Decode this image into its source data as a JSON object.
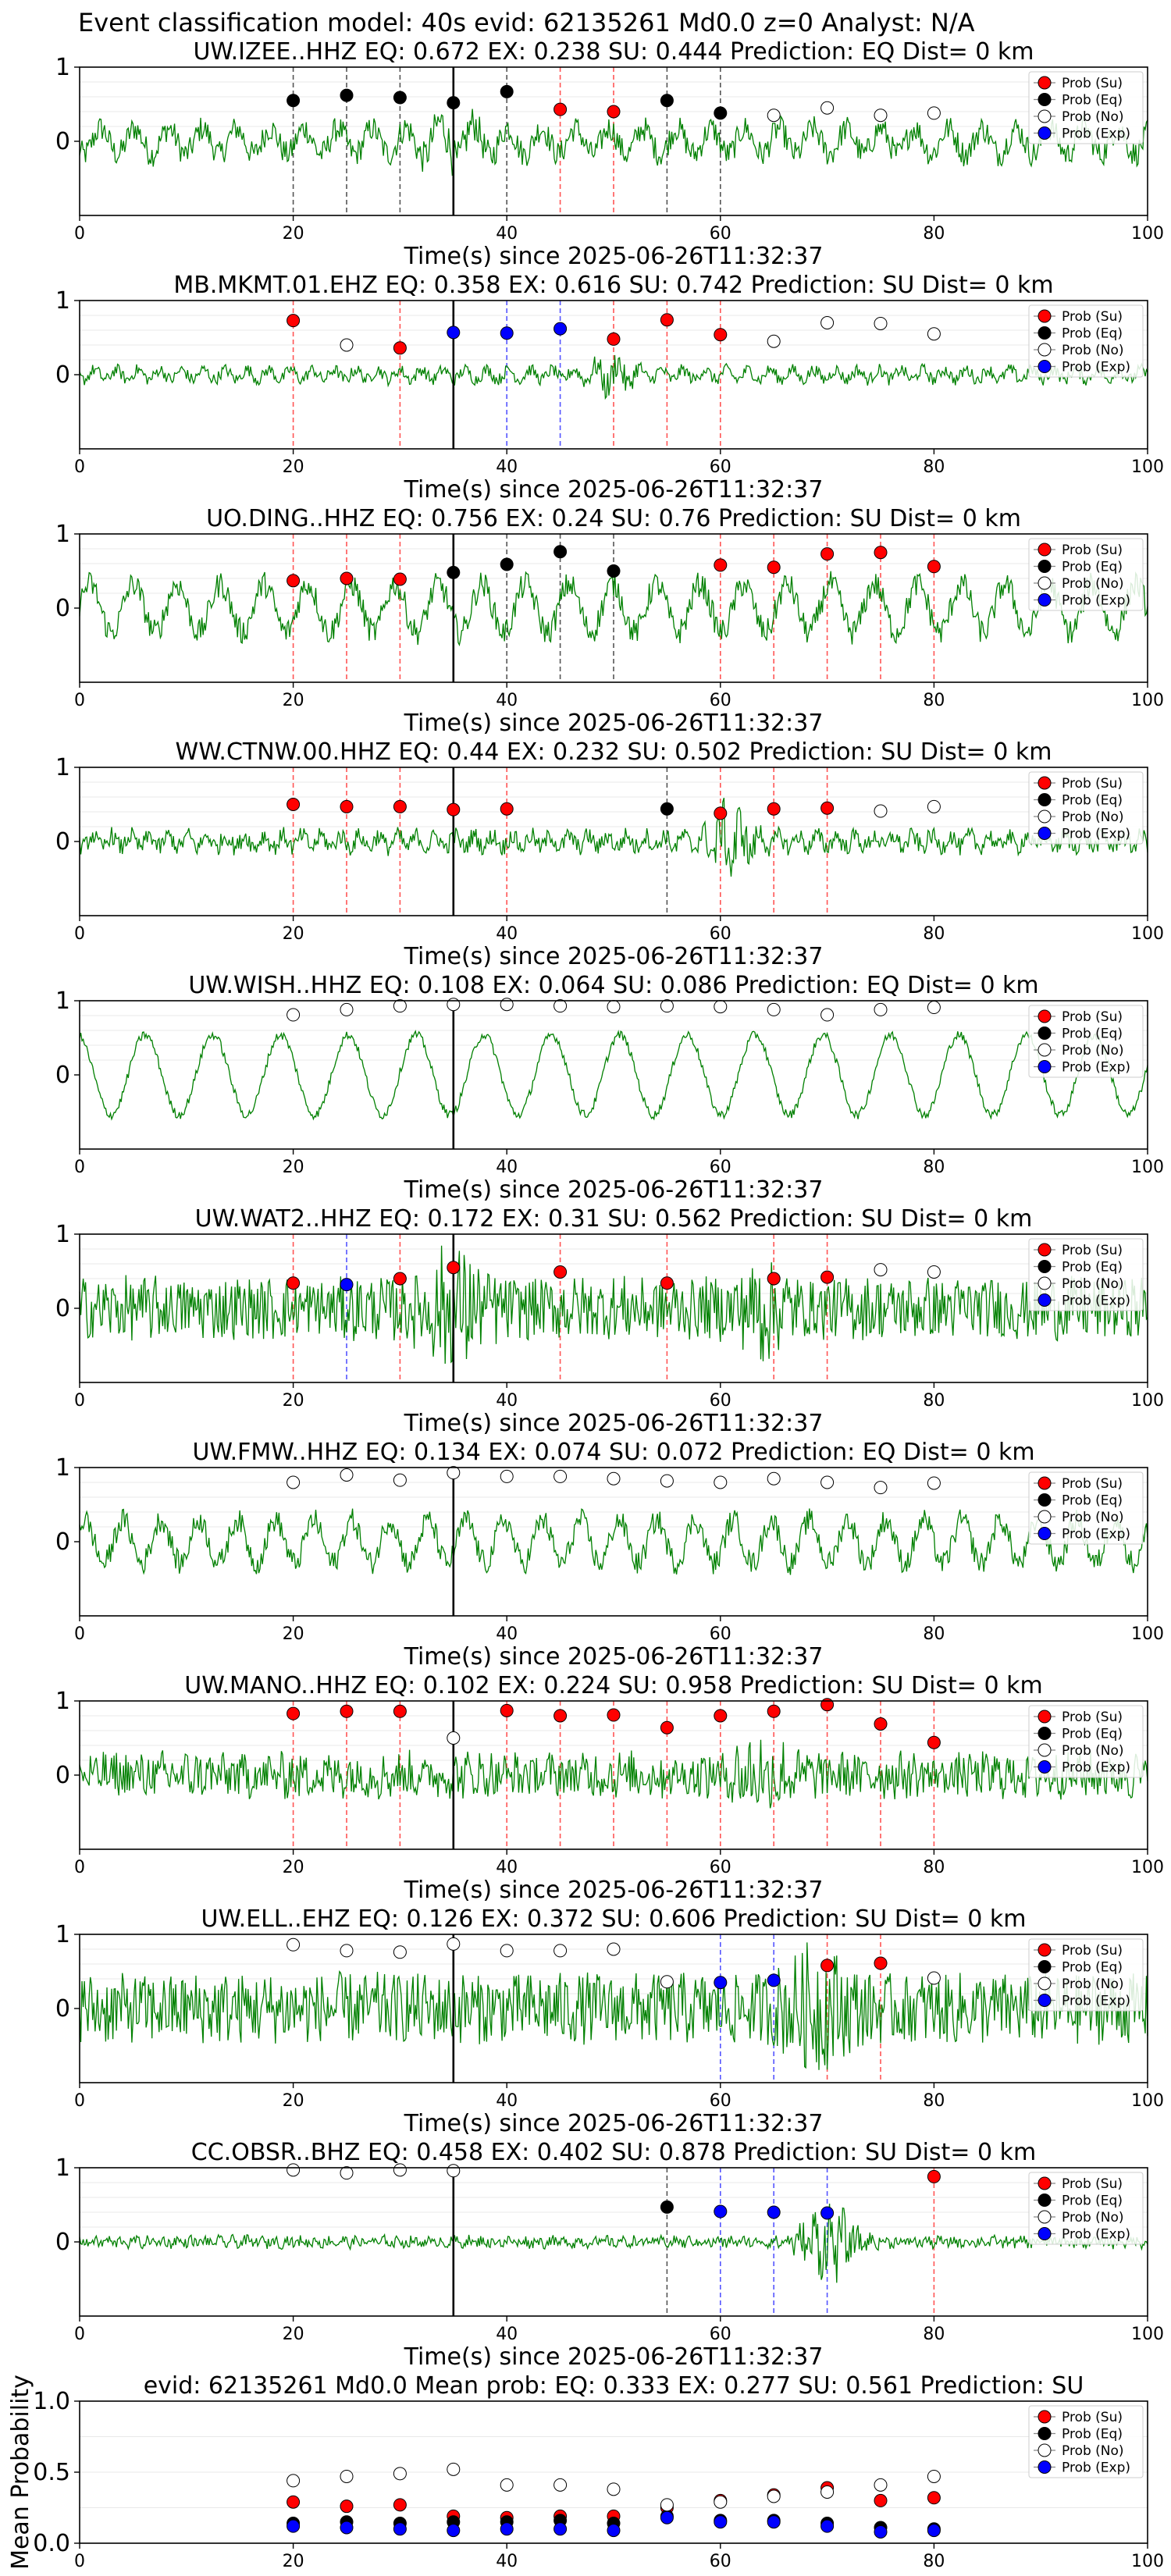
{
  "figure_title": "Event classification model: 40s evid: 62135261 Md0.0 z=0 Analyst: N/A",
  "colors": {
    "waveform": "#008000",
    "su": "#ff0000",
    "eq": "#000000",
    "no": "#ffffff",
    "exp": "#0000ff",
    "su_line": "#ff5555",
    "eq_line": "#555555",
    "exp_line": "#5555ff",
    "pick_line": "#000000"
  },
  "legend": [
    "Prob (Su)",
    "Prob (Eq)",
    "Prob (No)",
    "Prob (Exp)"
  ],
  "chart_data": [
    {
      "type": "scatter",
      "title": "UW.IZEE..HHZ   EQ: 0.672  EX: 0.238  SU: 0.444   Prediction: EQ    Dist= 0 km",
      "xlabel": "Time(s) since 2025-06-26T11:32:37",
      "xlim": [
        0,
        100
      ],
      "ylim": [
        -1,
        1
      ],
      "xticks": [
        0,
        20,
        40,
        60,
        80,
        100
      ],
      "yticks": [
        0,
        1
      ],
      "pick_time": 35,
      "waveform": "waveform",
      "points": [
        {
          "x": 20,
          "y": 0.55,
          "cls": "eq"
        },
        {
          "x": 25,
          "y": 0.62,
          "cls": "eq"
        },
        {
          "x": 30,
          "y": 0.59,
          "cls": "eq"
        },
        {
          "x": 35,
          "y": 0.52,
          "cls": "eq"
        },
        {
          "x": 40,
          "y": 0.67,
          "cls": "eq"
        },
        {
          "x": 45,
          "y": 0.43,
          "cls": "su"
        },
        {
          "x": 50,
          "y": 0.4,
          "cls": "su"
        },
        {
          "x": 55,
          "y": 0.55,
          "cls": "eq"
        },
        {
          "x": 60,
          "y": 0.38,
          "cls": "eq"
        },
        {
          "x": 65,
          "y": 0.35,
          "cls": "no"
        },
        {
          "x": 70,
          "y": 0.45,
          "cls": "no"
        },
        {
          "x": 75,
          "y": 0.35,
          "cls": "no"
        },
        {
          "x": 80,
          "y": 0.38,
          "cls": "no"
        }
      ]
    },
    {
      "type": "scatter",
      "title": "MB.MKMT.01.EHZ   EQ: 0.358  EX: 0.616  SU: 0.742   Prediction: SU    Dist= 0 km",
      "xlabel": "Time(s) since 2025-06-26T11:32:37",
      "xlim": [
        0,
        100
      ],
      "ylim": [
        -1,
        1
      ],
      "xticks": [
        0,
        20,
        40,
        60,
        80,
        100
      ],
      "yticks": [
        0,
        1
      ],
      "pick_time": 35,
      "waveform": "waveform",
      "points": [
        {
          "x": 20,
          "y": 0.73,
          "cls": "su"
        },
        {
          "x": 25,
          "y": 0.4,
          "cls": "no"
        },
        {
          "x": 30,
          "y": 0.36,
          "cls": "su"
        },
        {
          "x": 35,
          "y": 0.57,
          "cls": "exp"
        },
        {
          "x": 40,
          "y": 0.56,
          "cls": "exp"
        },
        {
          "x": 45,
          "y": 0.62,
          "cls": "exp"
        },
        {
          "x": 50,
          "y": 0.48,
          "cls": "su"
        },
        {
          "x": 55,
          "y": 0.74,
          "cls": "su"
        },
        {
          "x": 60,
          "y": 0.54,
          "cls": "su"
        },
        {
          "x": 65,
          "y": 0.45,
          "cls": "no"
        },
        {
          "x": 70,
          "y": 0.7,
          "cls": "no"
        },
        {
          "x": 75,
          "y": 0.69,
          "cls": "no"
        },
        {
          "x": 80,
          "y": 0.55,
          "cls": "no"
        }
      ]
    },
    {
      "type": "scatter",
      "title": "UO.DING..HHZ   EQ: 0.756  EX: 0.24  SU: 0.76   Prediction: SU    Dist= 0 km",
      "xlabel": "Time(s) since 2025-06-26T11:32:37",
      "xlim": [
        0,
        100
      ],
      "ylim": [
        -1,
        1
      ],
      "xticks": [
        0,
        20,
        40,
        60,
        80,
        100
      ],
      "yticks": [
        0,
        1
      ],
      "pick_time": 35,
      "waveform": "waveform",
      "points": [
        {
          "x": 20,
          "y": 0.37,
          "cls": "su"
        },
        {
          "x": 25,
          "y": 0.4,
          "cls": "su"
        },
        {
          "x": 30,
          "y": 0.39,
          "cls": "su"
        },
        {
          "x": 35,
          "y": 0.48,
          "cls": "eq"
        },
        {
          "x": 40,
          "y": 0.59,
          "cls": "eq"
        },
        {
          "x": 45,
          "y": 0.76,
          "cls": "eq"
        },
        {
          "x": 50,
          "y": 0.5,
          "cls": "eq"
        },
        {
          "x": 60,
          "y": 0.58,
          "cls": "su"
        },
        {
          "x": 65,
          "y": 0.55,
          "cls": "su"
        },
        {
          "x": 70,
          "y": 0.73,
          "cls": "su"
        },
        {
          "x": 75,
          "y": 0.75,
          "cls": "su"
        },
        {
          "x": 80,
          "y": 0.56,
          "cls": "su"
        }
      ]
    },
    {
      "type": "scatter",
      "title": "WW.CTNW.00.HHZ   EQ: 0.44  EX: 0.232  SU: 0.502   Prediction: SU    Dist= 0 km",
      "xlabel": "Time(s) since 2025-06-26T11:32:37",
      "xlim": [
        0,
        100
      ],
      "ylim": [
        -1,
        1
      ],
      "xticks": [
        0,
        20,
        40,
        60,
        80,
        100
      ],
      "yticks": [
        0,
        1
      ],
      "pick_time": 35,
      "waveform": "waveform",
      "points": [
        {
          "x": 20,
          "y": 0.5,
          "cls": "su"
        },
        {
          "x": 25,
          "y": 0.47,
          "cls": "su"
        },
        {
          "x": 30,
          "y": 0.47,
          "cls": "su"
        },
        {
          "x": 35,
          "y": 0.43,
          "cls": "su"
        },
        {
          "x": 40,
          "y": 0.44,
          "cls": "su"
        },
        {
          "x": 55,
          "y": 0.44,
          "cls": "eq"
        },
        {
          "x": 60,
          "y": 0.38,
          "cls": "su"
        },
        {
          "x": 65,
          "y": 0.44,
          "cls": "su"
        },
        {
          "x": 70,
          "y": 0.45,
          "cls": "su"
        },
        {
          "x": 75,
          "y": 0.41,
          "cls": "no"
        },
        {
          "x": 80,
          "y": 0.47,
          "cls": "no"
        }
      ]
    },
    {
      "type": "scatter",
      "title": "UW.WISH..HHZ   EQ: 0.108  EX: 0.064  SU: 0.086   Prediction: EQ    Dist= 0 km",
      "xlabel": "Time(s) since 2025-06-26T11:32:37",
      "xlim": [
        0,
        100
      ],
      "ylim": [
        -1,
        1
      ],
      "xticks": [
        0,
        20,
        40,
        60,
        80,
        100
      ],
      "yticks": [
        0,
        1
      ],
      "pick_time": 35,
      "waveform": "waveform",
      "points": [
        {
          "x": 20,
          "y": 0.81,
          "cls": "no"
        },
        {
          "x": 25,
          "y": 0.88,
          "cls": "no"
        },
        {
          "x": 30,
          "y": 0.93,
          "cls": "no"
        },
        {
          "x": 35,
          "y": 0.95,
          "cls": "no"
        },
        {
          "x": 40,
          "y": 0.95,
          "cls": "no"
        },
        {
          "x": 45,
          "y": 0.93,
          "cls": "no"
        },
        {
          "x": 50,
          "y": 0.92,
          "cls": "no"
        },
        {
          "x": 55,
          "y": 0.93,
          "cls": "no"
        },
        {
          "x": 60,
          "y": 0.92,
          "cls": "no"
        },
        {
          "x": 65,
          "y": 0.88,
          "cls": "no"
        },
        {
          "x": 70,
          "y": 0.81,
          "cls": "no"
        },
        {
          "x": 75,
          "y": 0.88,
          "cls": "no"
        },
        {
          "x": 80,
          "y": 0.91,
          "cls": "no"
        }
      ]
    },
    {
      "type": "scatter",
      "title": "UW.WAT2..HHZ   EQ: 0.172  EX: 0.31  SU: 0.562   Prediction: SU    Dist= 0 km",
      "xlabel": "Time(s) since 2025-06-26T11:32:37",
      "xlim": [
        0,
        100
      ],
      "ylim": [
        -1,
        1
      ],
      "xticks": [
        0,
        20,
        40,
        60,
        80,
        100
      ],
      "yticks": [
        0,
        1
      ],
      "pick_time": 35,
      "waveform": "waveform",
      "points": [
        {
          "x": 20,
          "y": 0.34,
          "cls": "su"
        },
        {
          "x": 25,
          "y": 0.32,
          "cls": "exp"
        },
        {
          "x": 30,
          "y": 0.4,
          "cls": "su"
        },
        {
          "x": 35,
          "y": 0.55,
          "cls": "su"
        },
        {
          "x": 45,
          "y": 0.49,
          "cls": "su"
        },
        {
          "x": 55,
          "y": 0.34,
          "cls": "su"
        },
        {
          "x": 65,
          "y": 0.4,
          "cls": "su"
        },
        {
          "x": 70,
          "y": 0.42,
          "cls": "su"
        },
        {
          "x": 75,
          "y": 0.52,
          "cls": "no"
        },
        {
          "x": 80,
          "y": 0.49,
          "cls": "no"
        }
      ]
    },
    {
      "type": "scatter",
      "title": "UW.FMW..HHZ   EQ: 0.134  EX: 0.074  SU: 0.072   Prediction: EQ    Dist= 0 km",
      "xlabel": "Time(s) since 2025-06-26T11:32:37",
      "xlim": [
        0,
        100
      ],
      "ylim": [
        -1,
        1
      ],
      "xticks": [
        0,
        20,
        40,
        60,
        80,
        100
      ],
      "yticks": [
        0,
        1
      ],
      "pick_time": 35,
      "waveform": "waveform",
      "points": [
        {
          "x": 20,
          "y": 0.8,
          "cls": "no"
        },
        {
          "x": 25,
          "y": 0.9,
          "cls": "no"
        },
        {
          "x": 30,
          "y": 0.83,
          "cls": "no"
        },
        {
          "x": 35,
          "y": 0.93,
          "cls": "no"
        },
        {
          "x": 40,
          "y": 0.88,
          "cls": "no"
        },
        {
          "x": 45,
          "y": 0.88,
          "cls": "no"
        },
        {
          "x": 50,
          "y": 0.85,
          "cls": "no"
        },
        {
          "x": 55,
          "y": 0.82,
          "cls": "no"
        },
        {
          "x": 60,
          "y": 0.8,
          "cls": "no"
        },
        {
          "x": 65,
          "y": 0.85,
          "cls": "no"
        },
        {
          "x": 70,
          "y": 0.8,
          "cls": "no"
        },
        {
          "x": 75,
          "y": 0.73,
          "cls": "no"
        },
        {
          "x": 80,
          "y": 0.79,
          "cls": "no"
        }
      ]
    },
    {
      "type": "scatter",
      "title": "UW.MANO..HHZ   EQ: 0.102  EX: 0.224  SU: 0.958   Prediction: SU    Dist= 0 km",
      "xlabel": "Time(s) since 2025-06-26T11:32:37",
      "xlim": [
        0,
        100
      ],
      "ylim": [
        -1,
        1
      ],
      "xticks": [
        0,
        20,
        40,
        60,
        80,
        100
      ],
      "yticks": [
        0,
        1
      ],
      "pick_time": 35,
      "waveform": "waveform",
      "points": [
        {
          "x": 20,
          "y": 0.83,
          "cls": "su"
        },
        {
          "x": 25,
          "y": 0.86,
          "cls": "su"
        },
        {
          "x": 30,
          "y": 0.86,
          "cls": "su"
        },
        {
          "x": 35,
          "y": 0.5,
          "cls": "no"
        },
        {
          "x": 40,
          "y": 0.87,
          "cls": "su"
        },
        {
          "x": 45,
          "y": 0.8,
          "cls": "su"
        },
        {
          "x": 50,
          "y": 0.81,
          "cls": "su"
        },
        {
          "x": 55,
          "y": 0.64,
          "cls": "su"
        },
        {
          "x": 60,
          "y": 0.8,
          "cls": "su"
        },
        {
          "x": 65,
          "y": 0.86,
          "cls": "su"
        },
        {
          "x": 70,
          "y": 0.95,
          "cls": "su"
        },
        {
          "x": 75,
          "y": 0.69,
          "cls": "su"
        },
        {
          "x": 80,
          "y": 0.44,
          "cls": "su"
        }
      ]
    },
    {
      "type": "scatter",
      "title": "UW.ELL..EHZ   EQ: 0.126  EX: 0.372  SU: 0.606   Prediction: SU    Dist= 0 km",
      "xlabel": "Time(s) since 2025-06-26T11:32:37",
      "xlim": [
        0,
        100
      ],
      "ylim": [
        -1,
        1
      ],
      "xticks": [
        0,
        20,
        40,
        60,
        80,
        100
      ],
      "yticks": [
        0,
        1
      ],
      "pick_time": 35,
      "waveform": "waveform",
      "points": [
        {
          "x": 20,
          "y": 0.86,
          "cls": "no"
        },
        {
          "x": 25,
          "y": 0.78,
          "cls": "no"
        },
        {
          "x": 30,
          "y": 0.76,
          "cls": "no"
        },
        {
          "x": 35,
          "y": 0.87,
          "cls": "no"
        },
        {
          "x": 40,
          "y": 0.78,
          "cls": "no"
        },
        {
          "x": 45,
          "y": 0.78,
          "cls": "no"
        },
        {
          "x": 50,
          "y": 0.8,
          "cls": "no"
        },
        {
          "x": 55,
          "y": 0.36,
          "cls": "no"
        },
        {
          "x": 60,
          "y": 0.35,
          "cls": "exp"
        },
        {
          "x": 65,
          "y": 0.38,
          "cls": "exp"
        },
        {
          "x": 70,
          "y": 0.58,
          "cls": "su"
        },
        {
          "x": 75,
          "y": 0.61,
          "cls": "su"
        },
        {
          "x": 80,
          "y": 0.41,
          "cls": "no"
        }
      ]
    },
    {
      "type": "scatter",
      "title": "CC.OBSR..BHZ   EQ: 0.458  EX: 0.402  SU: 0.878   Prediction: SU    Dist= 0 km",
      "xlabel": "Time(s) since 2025-06-26T11:32:37",
      "xlim": [
        0,
        100
      ],
      "ylim": [
        -1,
        1
      ],
      "xticks": [
        0,
        20,
        40,
        60,
        80,
        100
      ],
      "yticks": [
        0,
        1
      ],
      "pick_time": 35,
      "waveform": "waveform",
      "points": [
        {
          "x": 20,
          "y": 0.97,
          "cls": "no"
        },
        {
          "x": 25,
          "y": 0.93,
          "cls": "no"
        },
        {
          "x": 30,
          "y": 0.97,
          "cls": "no"
        },
        {
          "x": 35,
          "y": 0.96,
          "cls": "no"
        },
        {
          "x": 55,
          "y": 0.47,
          "cls": "eq"
        },
        {
          "x": 60,
          "y": 0.41,
          "cls": "exp"
        },
        {
          "x": 65,
          "y": 0.4,
          "cls": "exp"
        },
        {
          "x": 70,
          "y": 0.39,
          "cls": "exp"
        },
        {
          "x": 80,
          "y": 0.88,
          "cls": "su"
        }
      ]
    },
    {
      "type": "scatter",
      "title": "evid: 62135261  Md0.0   Mean prob:   EQ: 0.333  EX: 0.277  SU: 0.561   Prediction: SU",
      "ylabel": "Mean Probability",
      "xlim": [
        0,
        100
      ],
      "ylim": [
        0,
        1
      ],
      "xticks": [
        0,
        20,
        40,
        60,
        80,
        100
      ],
      "yticks": [
        0.0,
        0.5,
        1.0
      ],
      "series": [
        {
          "name": "Prob (Su)",
          "cls": "su",
          "x": [
            20,
            25,
            30,
            35,
            40,
            45,
            50,
            55,
            60,
            65,
            70,
            75,
            80
          ],
          "y": [
            0.29,
            0.26,
            0.27,
            0.19,
            0.18,
            0.19,
            0.19,
            0.25,
            0.3,
            0.34,
            0.39,
            0.3,
            0.32
          ]
        },
        {
          "name": "Prob (Eq)",
          "cls": "eq",
          "x": [
            20,
            25,
            30,
            35,
            40,
            45,
            50,
            55,
            60,
            65,
            70,
            75,
            80
          ],
          "y": [
            0.14,
            0.15,
            0.14,
            0.15,
            0.15,
            0.16,
            0.14,
            0.19,
            0.16,
            0.16,
            0.14,
            0.11,
            0.1
          ]
        },
        {
          "name": "Prob (No)",
          "cls": "no",
          "x": [
            20,
            25,
            30,
            35,
            40,
            45,
            50,
            55,
            60,
            65,
            70,
            75,
            80
          ],
          "y": [
            0.44,
            0.47,
            0.49,
            0.52,
            0.41,
            0.41,
            0.38,
            0.27,
            0.29,
            0.33,
            0.36,
            0.41,
            0.47
          ]
        },
        {
          "name": "Prob (Exp)",
          "cls": "exp",
          "x": [
            20,
            25,
            30,
            35,
            40,
            45,
            50,
            55,
            60,
            65,
            70,
            75,
            80
          ],
          "y": [
            0.12,
            0.11,
            0.1,
            0.09,
            0.1,
            0.1,
            0.09,
            0.18,
            0.15,
            0.15,
            0.12,
            0.08,
            0.09
          ]
        }
      ]
    }
  ]
}
